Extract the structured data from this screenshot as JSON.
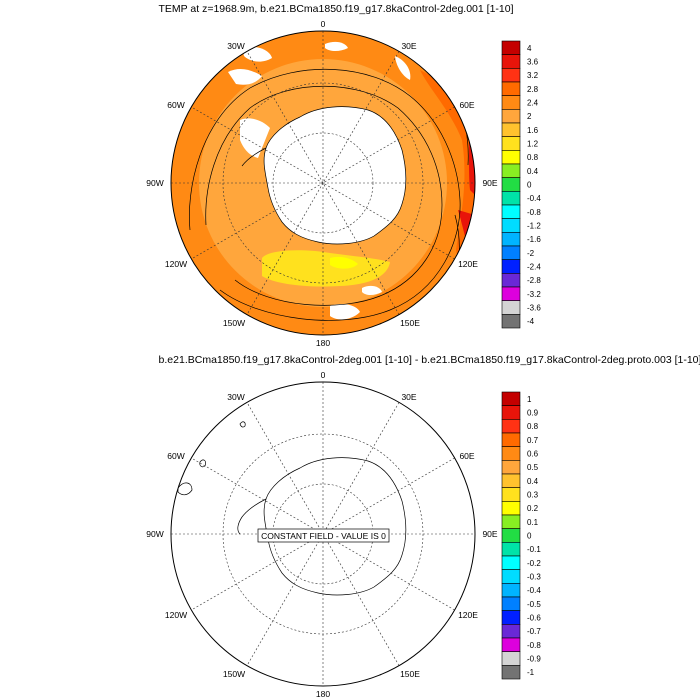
{
  "panels": [
    {
      "title": "TEMP at z=1968.9m, b.e21.BCma1850.f19_g17.8kaControl-2deg.001 [1-10]",
      "longitude_labels": [
        "0",
        "30E",
        "60E",
        "90E",
        "120E",
        "150E",
        "180",
        "150W",
        "120W",
        "90W",
        "60W",
        "30W"
      ],
      "colorbar": {
        "labels": [
          "4",
          "3.6",
          "3.2",
          "2.8",
          "2.4",
          "2",
          "1.6",
          "1.2",
          "0.8",
          "0.4",
          "0",
          "-0.4",
          "-0.8",
          "-1.2",
          "-1.6",
          "-2",
          "-2.4",
          "-2.8",
          "-3.2",
          "-3.6",
          "-4"
        ],
        "colors": [
          "#c40000",
          "#e8140a",
          "#ff3214",
          "#ff6a00",
          "#ff8a14",
          "#ffa63c",
          "#ffc22e",
          "#ffe11e",
          "#ffff00",
          "#88ee22",
          "#22dd44",
          "#00e3a8",
          "#00ffff",
          "#00dcff",
          "#00b4ff",
          "#0080ff",
          "#0020ff",
          "#6a28d6",
          "#dd00dd",
          "#d4d4d4",
          "#737373"
        ]
      }
    },
    {
      "title": "b.e21.BCma1850.f19_g17.8kaControl-2deg.001 [1-10] - b.e21.BCma1850.f19_g17.8kaControl-2deg.proto.003 [1-10]",
      "longitude_labels": [
        "0",
        "30E",
        "60E",
        "90E",
        "120E",
        "150E",
        "180",
        "150W",
        "120W",
        "90W",
        "60W",
        "30W"
      ],
      "annotation": "CONSTANT FIELD - VALUE IS 0",
      "colorbar": {
        "labels": [
          "1",
          "0.9",
          "0.8",
          "0.7",
          "0.6",
          "0.5",
          "0.4",
          "0.3",
          "0.2",
          "0.1",
          "0",
          "-0.1",
          "-0.2",
          "-0.3",
          "-0.4",
          "-0.5",
          "-0.6",
          "-0.7",
          "-0.8",
          "-0.9",
          "-1"
        ],
        "colors": [
          "#c40000",
          "#e8140a",
          "#ff3214",
          "#ff6a00",
          "#ff8a14",
          "#ffa63c",
          "#ffc22e",
          "#ffe11e",
          "#ffff00",
          "#88ee22",
          "#22dd44",
          "#00e3a8",
          "#00ffff",
          "#00dcff",
          "#00b4ff",
          "#0080ff",
          "#0020ff",
          "#6a28d6",
          "#dd00dd",
          "#d4d4d4",
          "#737373"
        ]
      }
    }
  ]
}
